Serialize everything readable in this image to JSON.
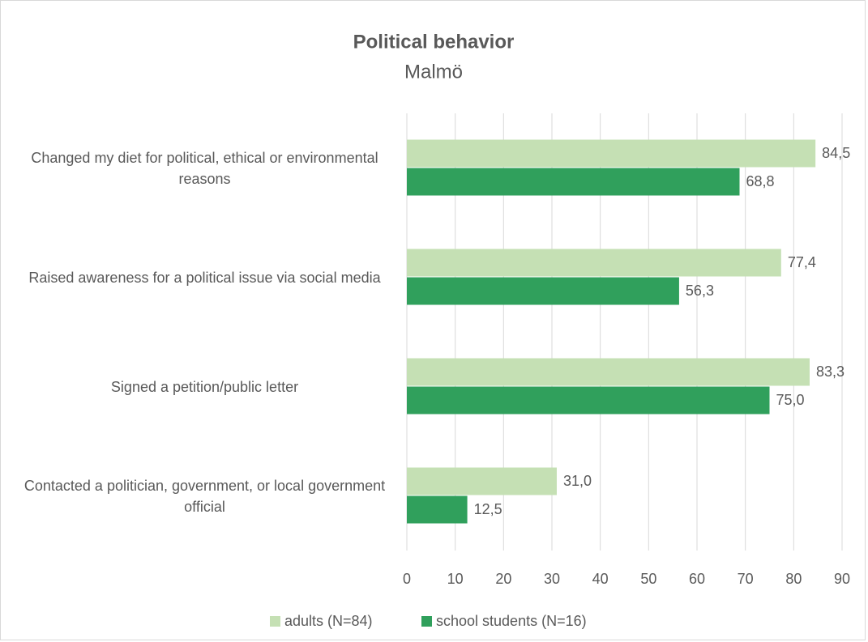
{
  "chart_data": {
    "type": "bar",
    "orientation": "horizontal",
    "title": "Political behavior",
    "subtitle": "Malmö",
    "categories": [
      "Changed my diet for political, ethical or environmental reasons",
      "Raised awareness for a political issue via social media",
      "Signed a petition/public letter",
      "Contacted a politician, government, or local government official"
    ],
    "series": [
      {
        "name": "adults (N=84)",
        "color": "#c5e0b4",
        "values": [
          84.5,
          77.4,
          83.3,
          31.0
        ],
        "value_labels": [
          "84,5",
          "77,4",
          "83,3",
          "31,0"
        ]
      },
      {
        "name": "school students (N=16)",
        "color": "#30a05c",
        "values": [
          68.8,
          56.3,
          75.0,
          12.5
        ],
        "value_labels": [
          "68,8",
          "56,3",
          "75,0",
          "12,5"
        ]
      }
    ],
    "xlim": [
      0,
      90
    ],
    "xticks": [
      0,
      10,
      20,
      30,
      40,
      50,
      60,
      70,
      80,
      90
    ],
    "grid": true,
    "legend": "bottom"
  }
}
